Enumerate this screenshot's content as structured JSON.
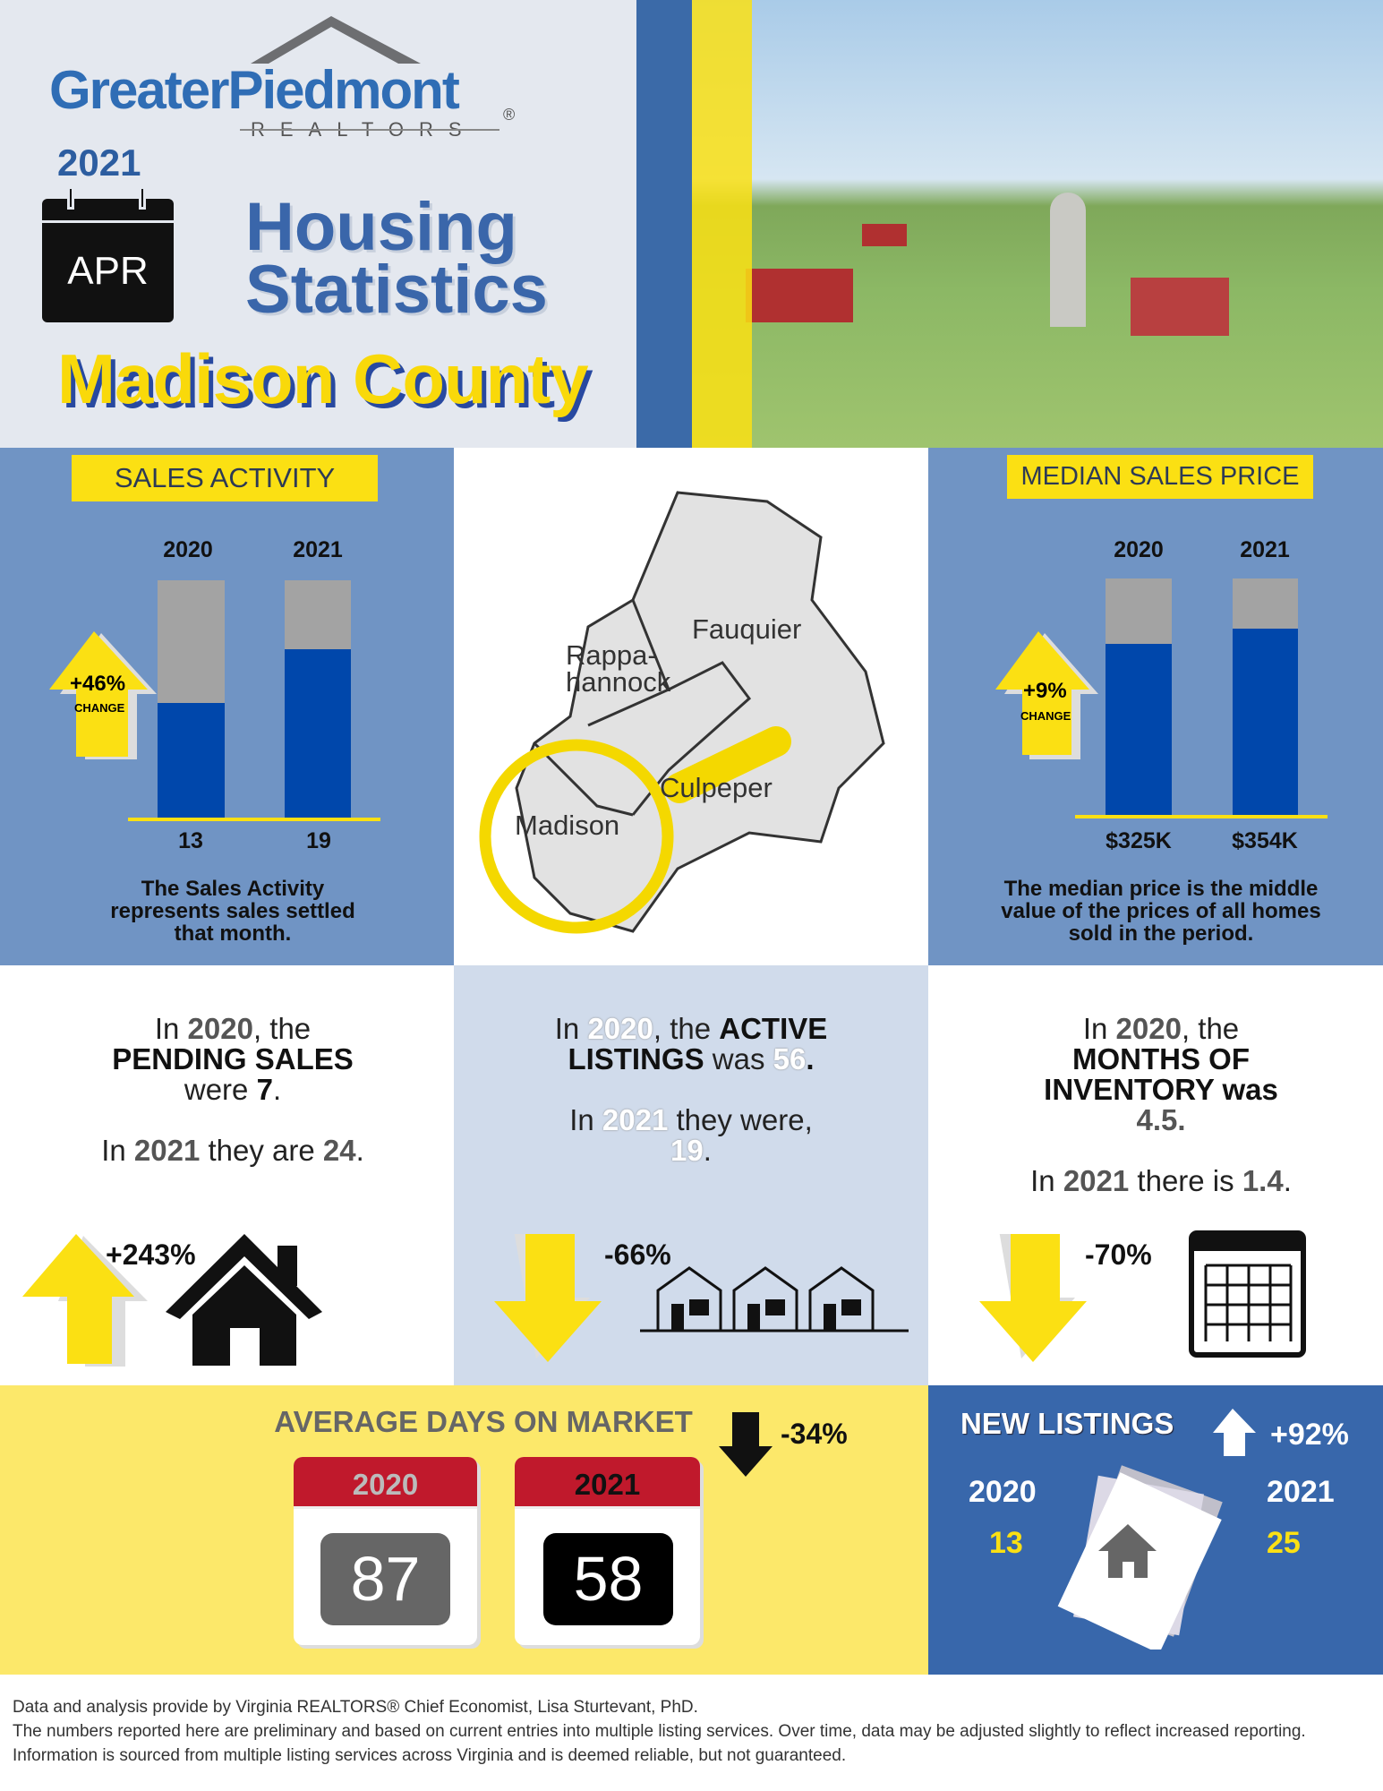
{
  "header": {
    "logo_main": "GreaterPiedmont",
    "logo_sub": "REALTORS",
    "registered": "®",
    "year": "2021",
    "month": "APR",
    "title_line1": "Housing",
    "title_line2": "Statistics",
    "county": "Madison County"
  },
  "sales_activity": {
    "tag": "SALES ACTIVITY",
    "years": [
      "2020",
      "2021"
    ],
    "values": [
      13,
      19
    ],
    "value_labels": [
      "13",
      "19"
    ],
    "change": "+46%",
    "change_label": "CHANGE",
    "note": "The Sales Activity represents sales settled that month."
  },
  "map": {
    "labels": [
      "Fauquier",
      "Rappa-",
      "hannock",
      "Culpeper",
      "Madison"
    ]
  },
  "median_price": {
    "tag": "MEDIAN SALES PRICE",
    "years": [
      "2020",
      "2021"
    ],
    "values": [
      325,
      354
    ],
    "value_labels": [
      "$325K",
      "$354K"
    ],
    "change": "+9%",
    "change_label": "CHANGE",
    "note": "The median price is the middle value of the prices of all homes sold in the period."
  },
  "pending": {
    "in": "In",
    "y2020": "2020",
    "the": ", the",
    "label": "PENDING SALES",
    "were": "were",
    "v2020": "7",
    "dot": ".",
    "y2021": "2021",
    "they_are": "they are",
    "v2021": "24",
    "change": "+243%"
  },
  "active": {
    "in": "In",
    "y2020": "2020",
    "the": ", the",
    "label1": "ACTIVE",
    "label2": "LISTINGS",
    "was": "was",
    "v2020": "56",
    "dot": ".",
    "y2021": "2021",
    "they_were": "they were,",
    "v2021": "19",
    "change": "-66%"
  },
  "inventory": {
    "in": "In",
    "y2020": "2020",
    "the": ", the",
    "label1": "MONTHS OF",
    "label2": "INVENTORY was",
    "v2020": "4.5",
    "dot": ".",
    "y2021": "2021",
    "there_is": "there is",
    "v2021": "1.4",
    "change": "-70%"
  },
  "days_on_market": {
    "title": "AVERAGE DAYS ON MARKET",
    "y2020": "2020",
    "v2020": "87",
    "y2021": "2021",
    "v2021": "58",
    "change": "-34%"
  },
  "new_listings": {
    "title": "NEW LISTINGS",
    "change": "+92%",
    "y2020": "2020",
    "v2020": "13",
    "y2021": "2021",
    "v2021": "25"
  },
  "footer": {
    "line1": "Data and analysis provide by Virginia REALTORS® Chief Economist, Lisa Sturtevant, PhD.",
    "line2": "The numbers reported here are preliminary and based on current entries into multiple listing services. Over time, data may be adjusted slightly to reflect increased reporting. Information is sourced from multiple listing services across Virginia and is deemed reliable, but not guaranteed."
  },
  "colors": {
    "blue": "#3867ab",
    "panel_blue": "#7094c4",
    "yellow": "#fbe013",
    "red": "#c0192c"
  }
}
